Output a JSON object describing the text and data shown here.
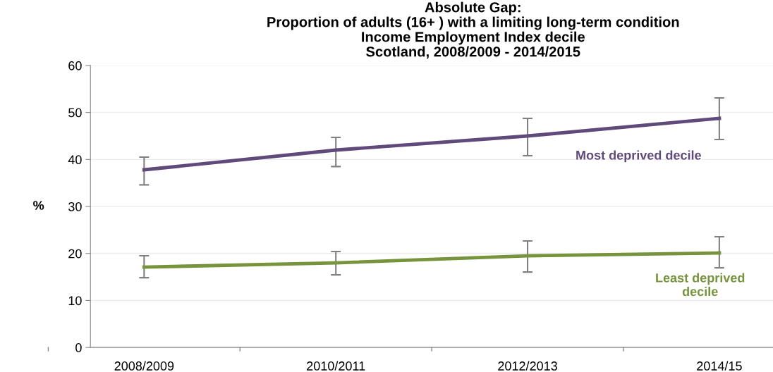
{
  "chart_data": {
    "type": "line",
    "title": "Absolute Gap:\nProportion of adults (16+ ) with a limiting long-term condition\nIncome Employment Index decile\nScotland, 2008/2009 - 2014/2015",
    "ylabel": "%",
    "categories": [
      "2008/2009",
      "2010/2011",
      "2012/2013",
      "2014/15"
    ],
    "series": [
      {
        "name": "Most deprived decile",
        "color": "#604a7b",
        "values": [
          37.8,
          42.0,
          45.0,
          48.75
        ],
        "errors": [
          [
            34.6,
            40.5
          ],
          [
            38.5,
            44.7
          ],
          [
            40.8,
            48.75
          ],
          [
            44.25,
            53.1
          ]
        ]
      },
      {
        "name": "Least deprived\ndecile",
        "color": "#77933c",
        "values": [
          17.1,
          18.0,
          19.5,
          20.1
        ],
        "errors": [
          [
            14.85,
            19.5
          ],
          [
            15.45,
            20.4
          ],
          [
            16.05,
            22.65
          ],
          [
            16.95,
            23.55
          ]
        ]
      }
    ],
    "ylim": [
      0,
      60
    ],
    "yticks": [
      0,
      10,
      20,
      30,
      40,
      50,
      60
    ],
    "grid": "y",
    "marker": "none",
    "line_style": "solid",
    "legend": false
  }
}
